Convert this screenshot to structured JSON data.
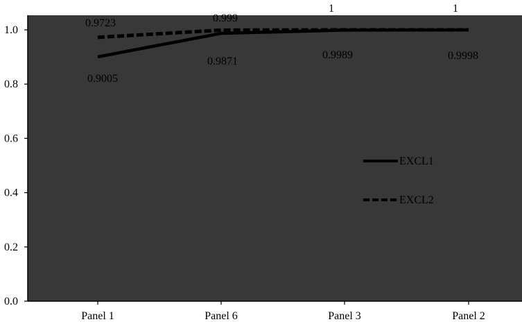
{
  "colors": {
    "plot_background": "#383838",
    "page_background": "#ffffff",
    "line": "#000000",
    "text": "#000000"
  },
  "chart_data": {
    "type": "line",
    "title": "",
    "xlabel": "",
    "ylabel": "",
    "categories": [
      "Panel 1",
      "Panel 6",
      "Panel 3",
      "Panel 2"
    ],
    "ylim": [
      0,
      1.0
    ],
    "yticks": [
      "0.0",
      "0.2",
      "0.4",
      "0.6",
      "0.8",
      "1.0"
    ],
    "grid": false,
    "legend_position": "right",
    "series": [
      {
        "name": "EXCL1",
        "style": "solid",
        "values": [
          0.9005,
          0.9871,
          0.9989,
          0.9998
        ],
        "labels": [
          "0.9005",
          "0.9871",
          "0.9989",
          "0.9998"
        ]
      },
      {
        "name": "EXCL2",
        "style": "dashed",
        "values": [
          0.9723,
          0.999,
          1,
          1
        ],
        "labels": [
          "0.9723",
          "0.999",
          "1",
          "1"
        ]
      }
    ]
  }
}
